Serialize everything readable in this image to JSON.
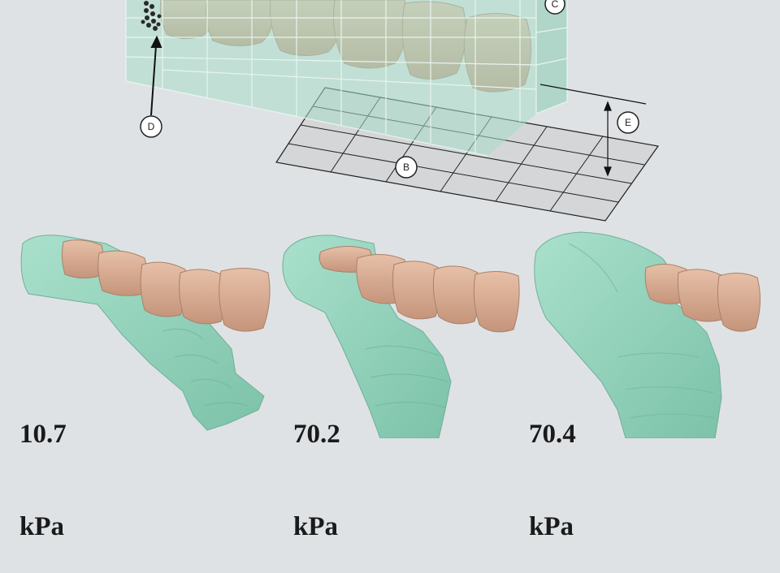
{
  "callouts": {
    "b": "B",
    "c": "C",
    "d": "D",
    "e": "E"
  },
  "panels": [
    {
      "value": "10.7",
      "unit": "kPa"
    },
    {
      "value": "70.2",
      "unit": "kPa"
    },
    {
      "value": "70.4",
      "unit": "kPa"
    }
  ],
  "colors": {
    "background": "#dfe2e4",
    "tooth": "#d9ac92",
    "tissue": "#98d6c0",
    "mold_box": "#a8ddc8",
    "grid_plate": "#d4d6d8"
  }
}
